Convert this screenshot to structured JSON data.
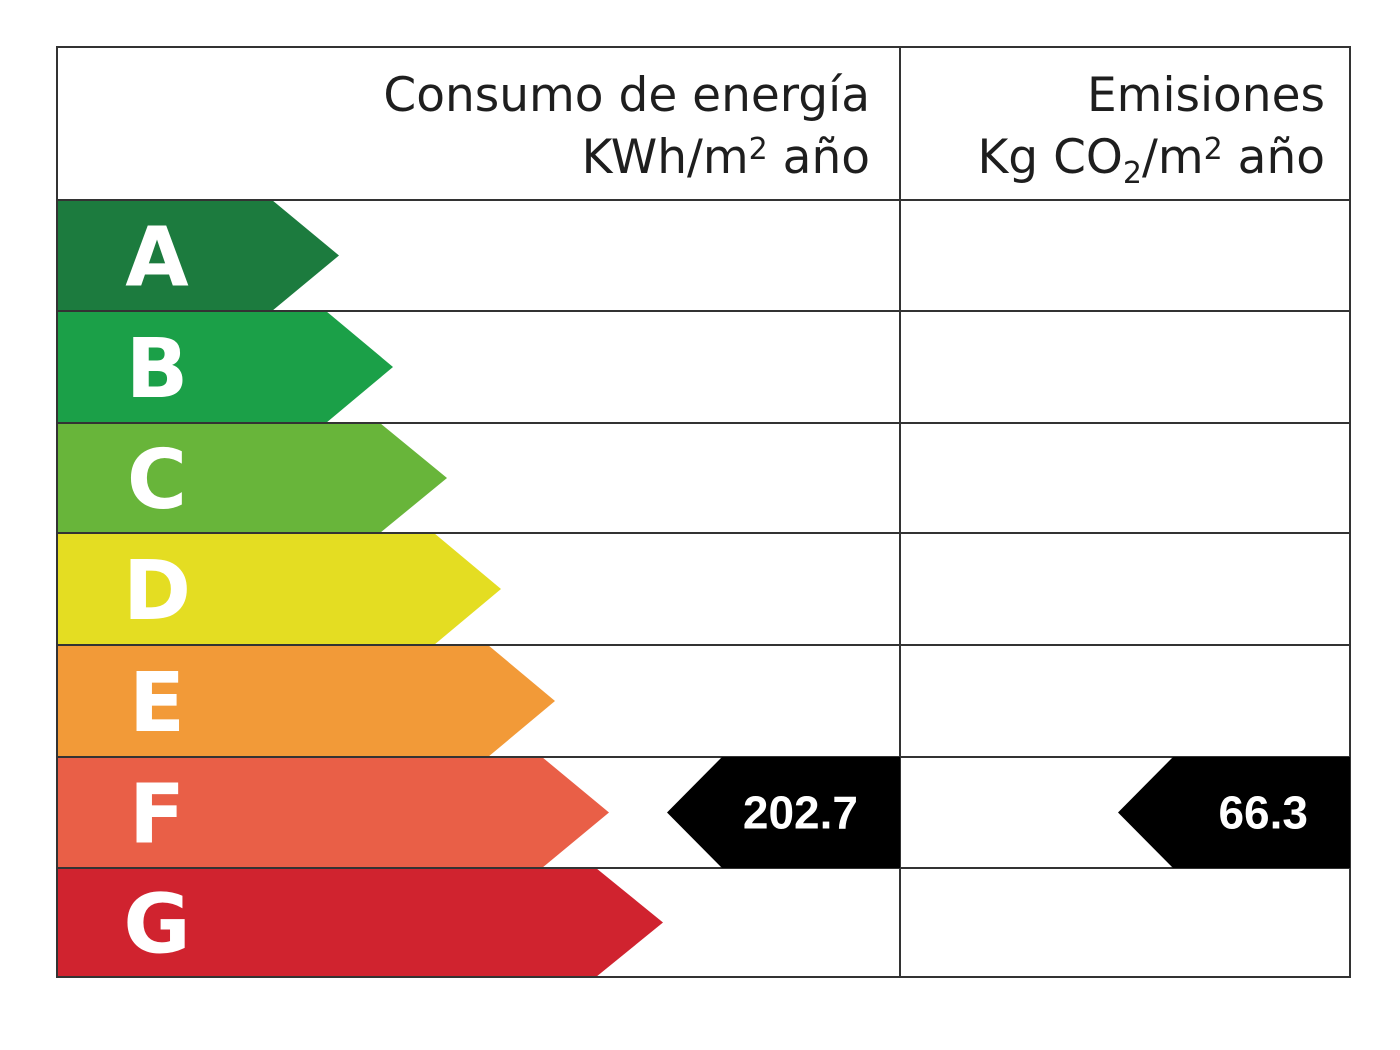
{
  "header": {
    "energy_title": "Consumo de energía",
    "energy_unit_prefix": "KWh/m",
    "energy_unit_exp": "2",
    "energy_unit_suffix": " año",
    "emissions_title": "Emisiones",
    "emissions_unit_prefix": "Kg CO",
    "emissions_unit_sub": "2",
    "emissions_unit_mid": "/m",
    "emissions_unit_exp": "2",
    "emissions_unit_suffix": " año"
  },
  "chart_data": {
    "type": "energy-rating",
    "title": "Consumo de energía KWh/m2 año / Emisiones Kg CO2/m2 año",
    "categories": [
      "A",
      "B",
      "C",
      "D",
      "E",
      "F",
      "G"
    ],
    "colors": [
      "#1c7b3e",
      "#1ba048",
      "#68b53a",
      "#e4dd22",
      "#f29a38",
      "#e95f47",
      "#d0232f"
    ],
    "energy": {
      "label": "Consumo de energía",
      "unit": "KWh/m2 año",
      "rating": "F",
      "value": "202.7"
    },
    "emissions": {
      "label": "Emisiones",
      "unit": "Kg CO2/m2 año",
      "rating": "F",
      "value": "66.3"
    },
    "indicator_color": "#000000"
  }
}
